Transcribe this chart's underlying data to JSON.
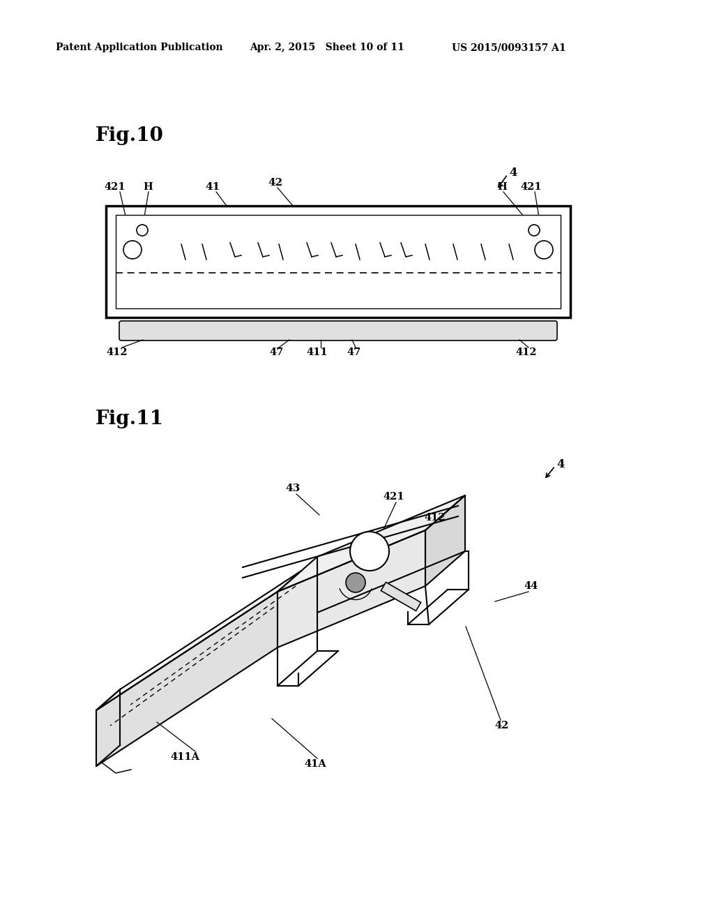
{
  "bg_color": "#ffffff",
  "header_left": "Patent Application Publication",
  "header_mid": "Apr. 2, 2015   Sheet 10 of 11",
  "header_right": "US 2015/0093157 A1",
  "fig10_label": "Fig.10",
  "fig11_label": "Fig.11",
  "lw_thick": 2.5,
  "lw_med": 1.5,
  "lw_thin": 1.0
}
